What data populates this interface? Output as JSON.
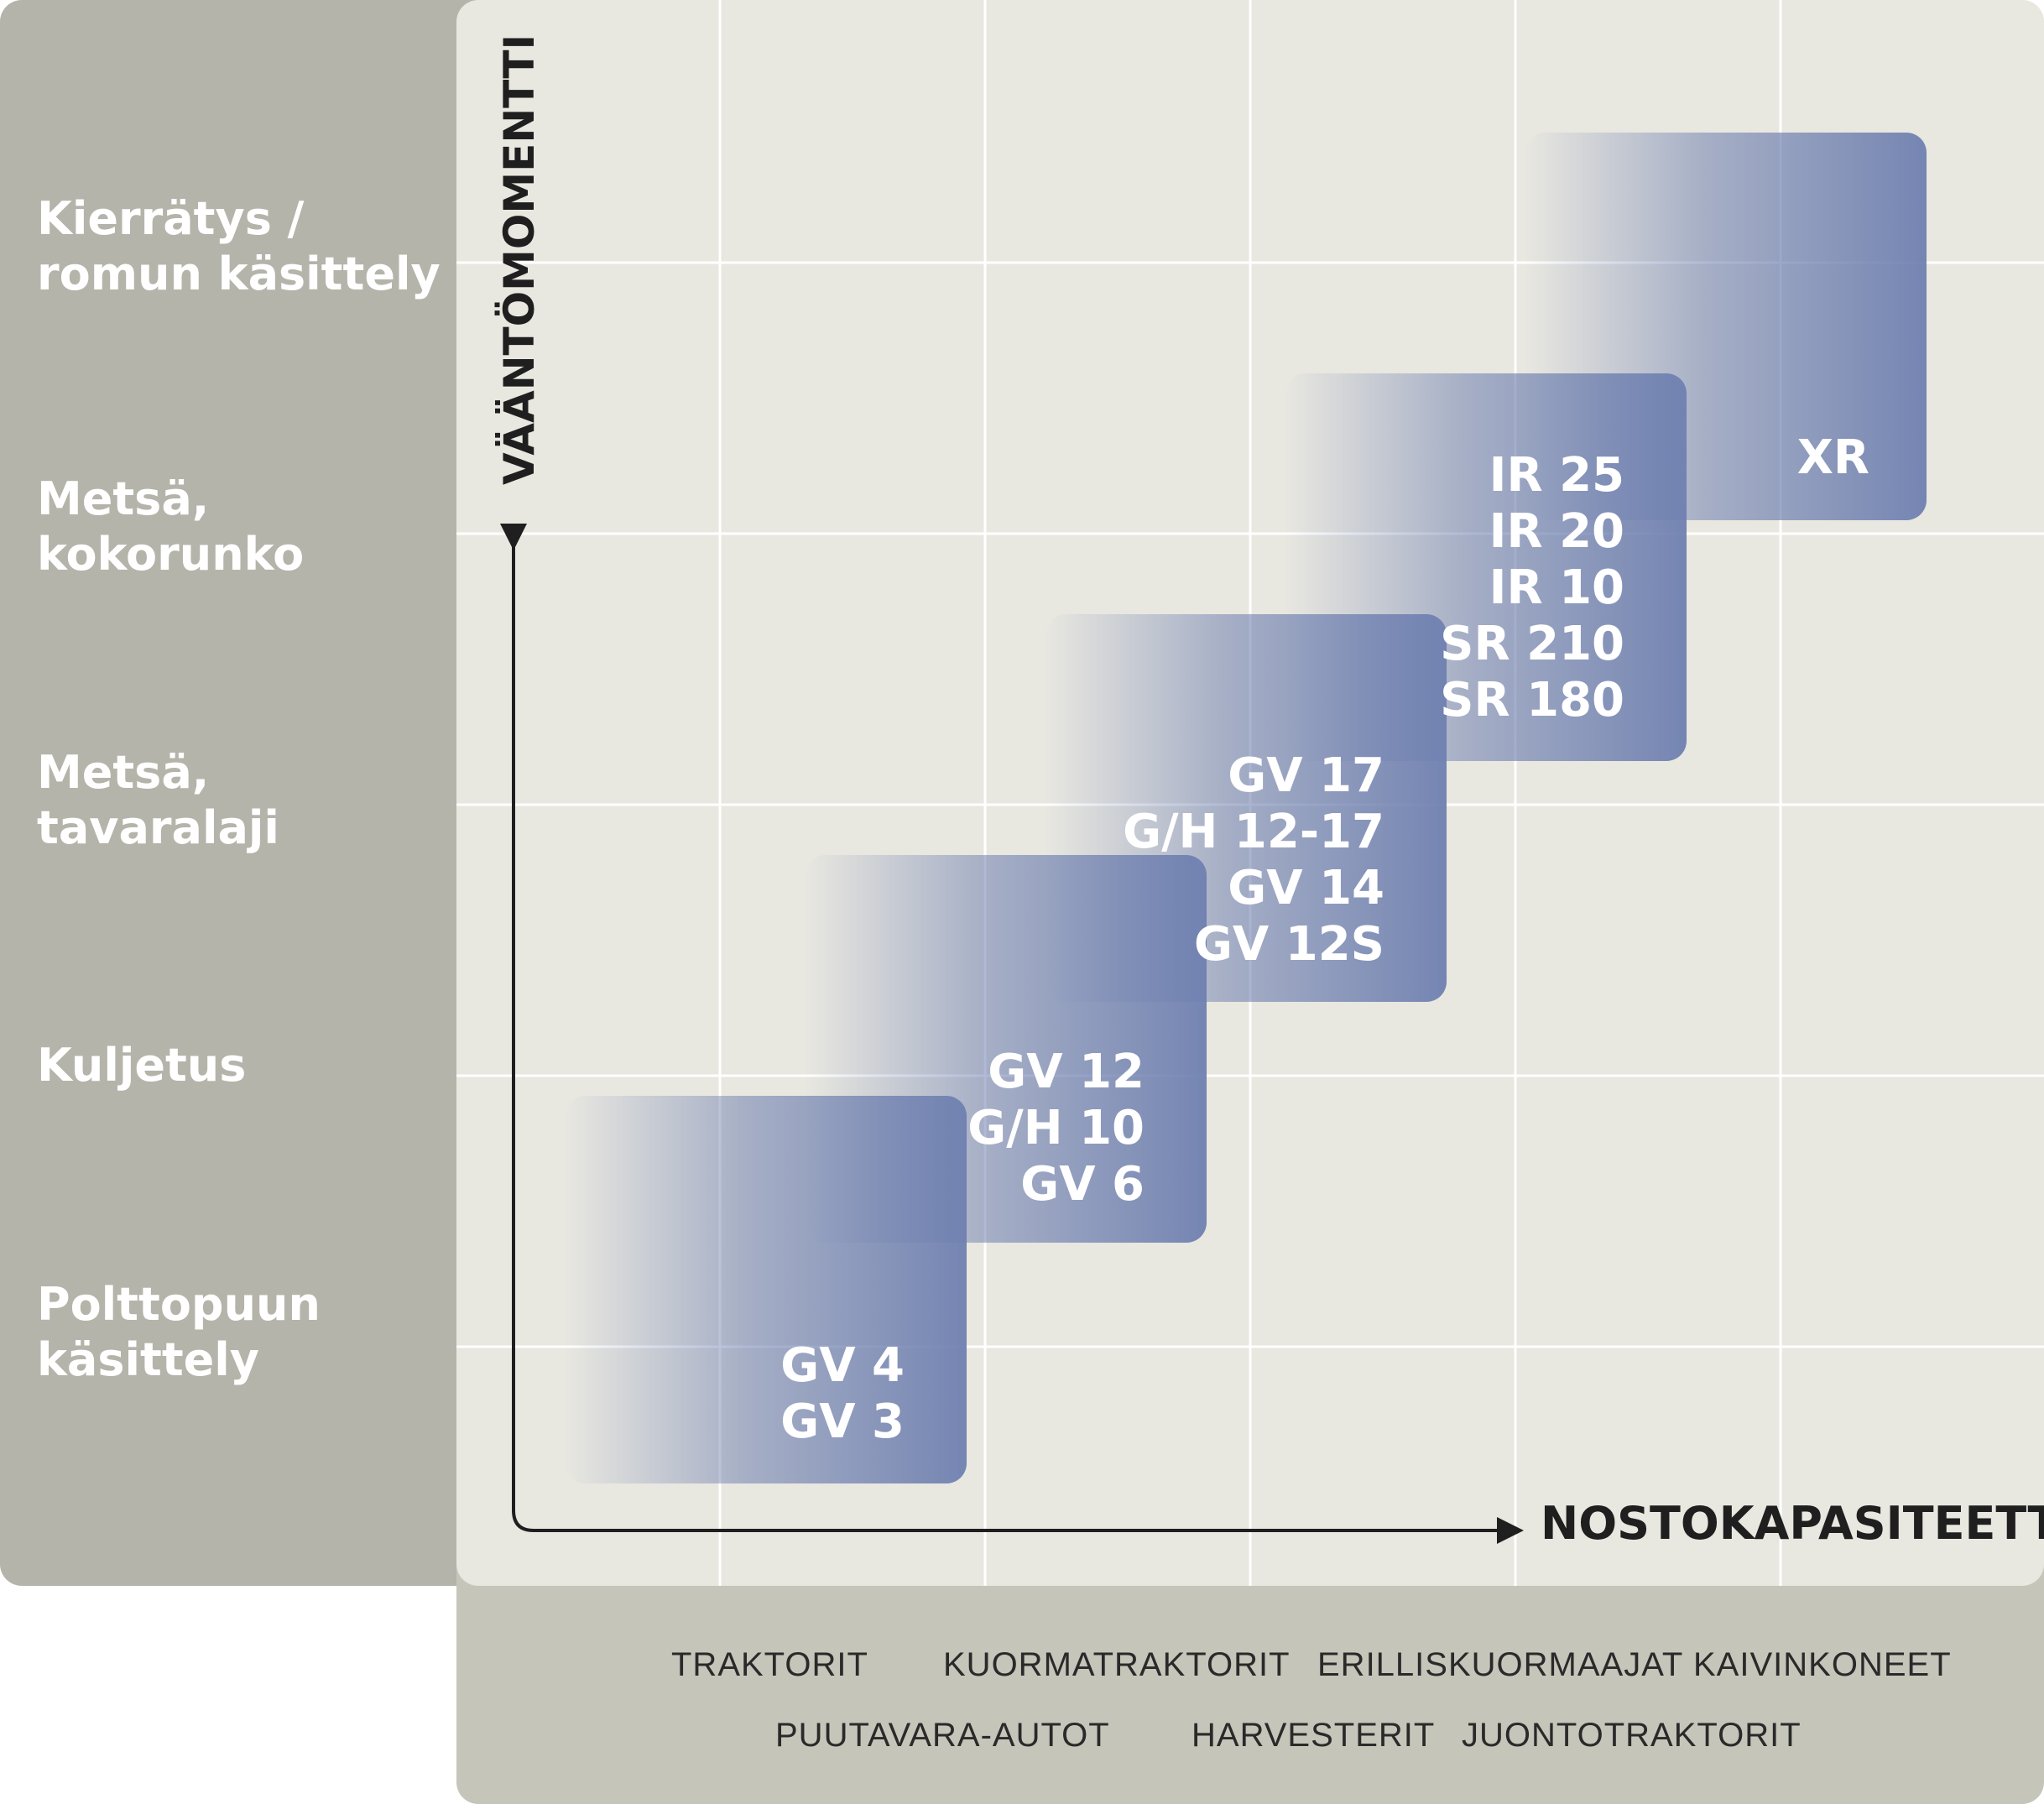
{
  "categories": [
    "Kierrätys /\nromun käsittely",
    "Metsä,\nkokorunko",
    "Metsä,\ntavaralaji",
    "Kuljetus",
    "Polttopuun\nkäsittely"
  ],
  "axes": {
    "y_title": "VÄÄNTÖMOMENTTI",
    "x_title": "NOSTOKAPASITEETTI"
  },
  "blocks": [
    {
      "models": [
        "GV 4",
        "GV 3"
      ]
    },
    {
      "models": [
        "GV 12",
        "G/H 10",
        "GV 6"
      ]
    },
    {
      "models": [
        "GV 17",
        "G/H 12-17",
        "GV 14",
        "GV 12S"
      ]
    },
    {
      "models": [
        "IR 25",
        "IR 20",
        "IR 10",
        "SR 210",
        "SR 180"
      ]
    },
    {
      "models": [
        "XR"
      ]
    }
  ],
  "machines": {
    "row1": [
      "TRAKTORIT",
      "KUORMATRAKTORIT",
      "ERILLISKUORMAAJAT",
      "KAIVINKONEET"
    ],
    "row2": [
      "PUUTAVARA-AUTOT",
      "HARVESTERIT",
      "JUONTOTRAKTORIT"
    ]
  },
  "colors": {
    "block": "#6f80b0",
    "panel": "#b4b4aa",
    "chart_bg": "#e8e7e0",
    "grid": "#ffffff"
  }
}
